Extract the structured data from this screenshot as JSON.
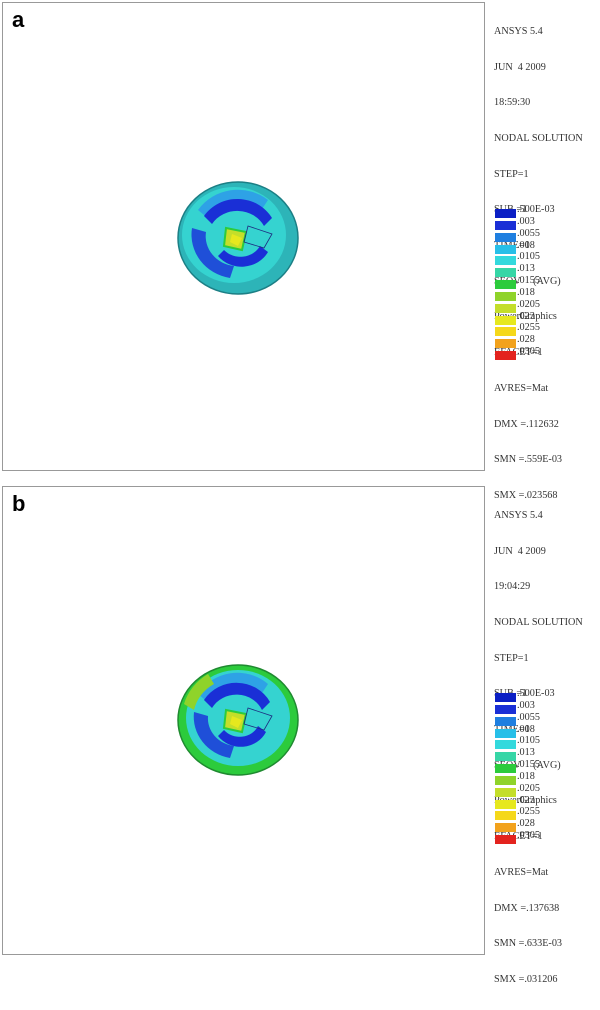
{
  "panels": [
    {
      "letter": "a",
      "info": [
        "ANSYS 5.4",
        "JUN  4 2009",
        "18:59:30",
        "NODAL SOLUTION",
        "STEP=1",
        "SUB =1",
        "TIME=1",
        "SEQV     (AVG)",
        "PowerGraphics",
        "EFACET=1",
        "AVRES=Mat",
        "DMX =.112632",
        "SMN =.559E-03",
        "SMX =.023568"
      ]
    },
    {
      "letter": "b",
      "info": [
        "ANSYS 5.4",
        "JUN  4 2009",
        "19:04:29",
        "NODAL SOLUTION",
        "STEP=1",
        "SUB =1",
        "TIME=1",
        "SEQV     (AVG)",
        "PowerGraphics",
        "EFACET=1",
        "AVRES=Mat",
        "DMX =.137638",
        "SMN =.633E-03",
        "SMX =.031206"
      ]
    }
  ],
  "legend": {
    "labels": [
      ".500E-03",
      ".003",
      ".0055",
      ".008",
      ".0105",
      ".013",
      ".0155",
      ".018",
      ".0205",
      ".023",
      ".0255",
      ".028",
      ".0305"
    ],
    "colors": [
      "#0b1fc4",
      "#1a2fd6",
      "#1f7fe0",
      "#27bfe8",
      "#33d9dd",
      "#36d6a6",
      "#2ccb3c",
      "#8fd32a",
      "#c4de2a",
      "#e6e81e",
      "#f5d81a",
      "#f2a21c",
      "#e3231e"
    ]
  }
}
